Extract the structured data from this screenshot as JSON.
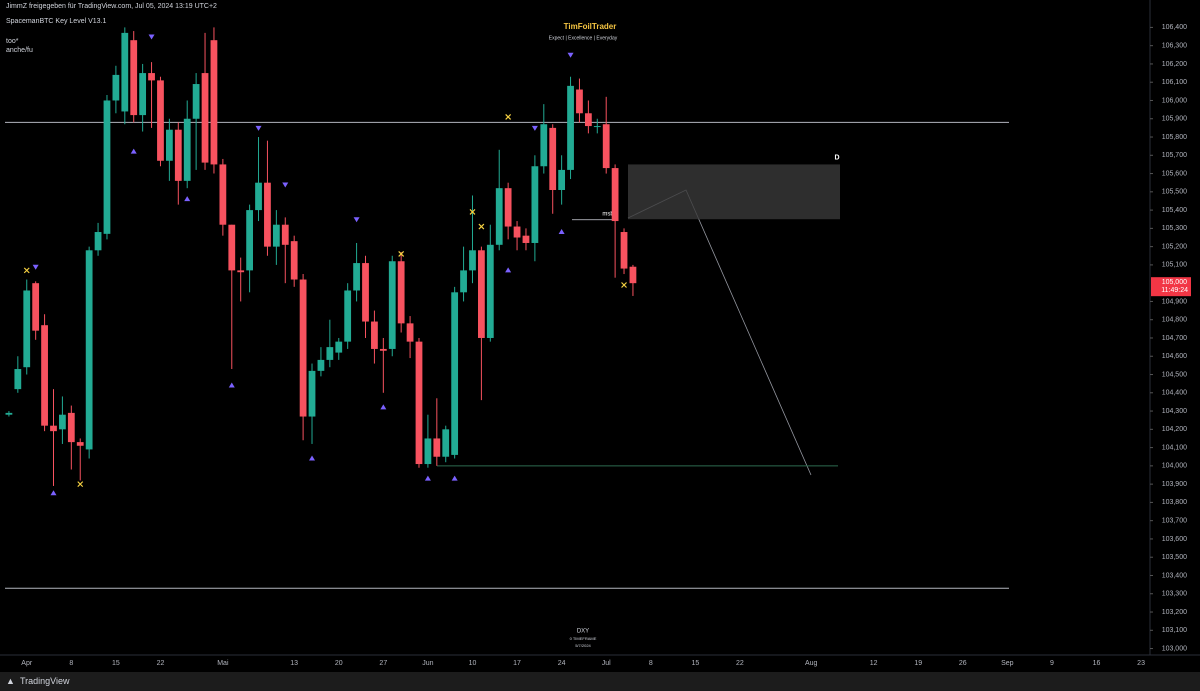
{
  "header": {
    "share": "JimmZ freigegeben für TradingView.com, Jul 05, 2024 13:19 UTC+2",
    "indicator": "SpacemanBTC Key Level V13.1",
    "line2": "too*",
    "line3": "anche/fu"
  },
  "watermark": {
    "title": "TimFoilTrader",
    "subtitle": "Expect | Excellence | Everyday"
  },
  "symbol": {
    "name": "DXY",
    "timeframe": "0 TIMEFRAME",
    "date": "5/7/2024"
  },
  "footer": {
    "brand": "TradingView"
  },
  "chart_data": {
    "type": "candlestick",
    "up_color": "#22ab94",
    "down_color": "#f7525f",
    "open": [
      104280,
      104420,
      104540,
      105000,
      104770,
      104220,
      104200,
      104290,
      104130,
      104090,
      105180,
      105270,
      106000,
      105940,
      106330,
      105920,
      106150,
      106110,
      105670,
      105840,
      105560,
      105900,
      106150,
      106330,
      105650,
      105320,
      105070,
      105070,
      105400,
      105550,
      105200,
      105320,
      105230,
      105020,
      104270,
      104520,
      104580,
      104620,
      104680,
      104960,
      105110,
      104790,
      104640,
      104640,
      105120,
      104780,
      104680,
      104010,
      104150,
      104050,
      104060,
      104950,
      105070,
      105180,
      104700,
      105210,
      105520,
      105310,
      105260,
      105220,
      105640,
      105850,
      105510,
      105620,
      106060,
      105930,
      105860,
      105870,
      105630,
      105280,
      105090
    ],
    "high": [
      104300,
      104600,
      105020,
      105010,
      104830,
      104420,
      104380,
      104330,
      104150,
      105200,
      105330,
      106030,
      106190,
      106400,
      106380,
      106200,
      106210,
      106130,
      105900,
      105880,
      106000,
      106150,
      106370,
      106400,
      105680,
      105320,
      105140,
      105430,
      105800,
      105780,
      105400,
      105360,
      105260,
      105050,
      104560,
      104650,
      104800,
      104700,
      105000,
      105220,
      105150,
      104850,
      104700,
      105150,
      105170,
      104820,
      104700,
      104280,
      104370,
      104220,
      104980,
      105200,
      105480,
      105200,
      105320,
      105730,
      105550,
      105340,
      105300,
      105700,
      105980,
      105870,
      105700,
      106130,
      106120,
      106000,
      105900,
      106020,
      105650,
      105300,
      105100
    ],
    "low": [
      104270,
      104400,
      104500,
      104690,
      104190,
      103890,
      104120,
      103980,
      103920,
      104040,
      105150,
      105240,
      105930,
      105870,
      105880,
      105830,
      105850,
      105640,
      105560,
      105430,
      105520,
      105620,
      105620,
      105600,
      105260,
      104530,
      104900,
      104950,
      105340,
      105150,
      105100,
      105000,
      104980,
      104140,
      104120,
      104490,
      104540,
      104580,
      104640,
      104900,
      104700,
      104560,
      104400,
      104600,
      104730,
      104590,
      103990,
      103990,
      104000,
      104020,
      104040,
      104900,
      105000,
      104360,
      104680,
      105180,
      105240,
      105180,
      105180,
      105120,
      105600,
      105380,
      105430,
      105570,
      105880,
      105820,
      105820,
      105600,
      105030,
      105050,
      104930
    ],
    "close": [
      104290,
      104530,
      104960,
      104740,
      104220,
      104190,
      104280,
      104130,
      104110,
      105180,
      105280,
      106000,
      106140,
      106370,
      105920,
      106150,
      106110,
      105670,
      105840,
      105560,
      105900,
      106090,
      105660,
      105650,
      105320,
      105070,
      105060,
      105400,
      105550,
      105200,
      105320,
      105210,
      105020,
      104270,
      104520,
      104580,
      104650,
      104680,
      104960,
      105110,
      104790,
      104640,
      104630,
      105120,
      104780,
      104680,
      104010,
      104150,
      104050,
      104200,
      104950,
      105070,
      105180,
      104700,
      105210,
      105520,
      105310,
      105250,
      105220,
      105640,
      105870,
      105510,
      105620,
      106080,
      105930,
      105860,
      105860,
      105630,
      105340,
      105080,
      105000
    ],
    "last_price": {
      "value": 105000,
      "label": "105,000"
    },
    "countdown": "11:49:24",
    "levels": [
      105880,
      103330
    ],
    "target_level": 104000,
    "zone": [
      105350,
      105650
    ],
    "zone_label": "D",
    "msb": {
      "label": "msb",
      "price": 105380
    },
    "markers_down": [
      {
        "i": 3,
        "price": 105090
      },
      {
        "i": 16,
        "price": 106350
      },
      {
        "i": 28,
        "price": 105850
      },
      {
        "i": 31,
        "price": 105540
      },
      {
        "i": 39,
        "price": 105350
      },
      {
        "i": 63,
        "price": 106250
      },
      {
        "i": 59,
        "price": 105850
      }
    ],
    "markers_up": [
      {
        "i": 5,
        "price": 103850
      },
      {
        "i": 14,
        "price": 105720
      },
      {
        "i": 20,
        "price": 105460
      },
      {
        "i": 25,
        "price": 104440
      },
      {
        "i": 34,
        "price": 104040
      },
      {
        "i": 42,
        "price": 104320
      },
      {
        "i": 47,
        "price": 103930
      },
      {
        "i": 50,
        "price": 103930
      },
      {
        "i": 56,
        "price": 105070
      },
      {
        "i": 62,
        "price": 105280
      }
    ],
    "markers_x": [
      {
        "i": 2,
        "price": 105070
      },
      {
        "i": 8,
        "price": 103900
      },
      {
        "i": 44,
        "price": 105160
      },
      {
        "i": 52,
        "price": 105390
      },
      {
        "i": 53,
        "price": 105310
      },
      {
        "i": 56,
        "price": 105910
      },
      {
        "i": 69,
        "price": 104990
      }
    ],
    "xlim": [
      -1,
      128
    ],
    "xticks": [
      {
        "value": 2,
        "label": "Apr"
      },
      {
        "value": 7,
        "label": "8"
      },
      {
        "value": 12,
        "label": "15"
      },
      {
        "value": 17,
        "label": "22"
      },
      {
        "value": 24,
        "label": "Mai"
      },
      {
        "value": 32,
        "label": "13"
      },
      {
        "value": 37,
        "label": "20"
      },
      {
        "value": 42,
        "label": "27"
      },
      {
        "value": 47,
        "label": "Jun"
      },
      {
        "value": 52,
        "label": "10"
      },
      {
        "value": 57,
        "label": "17"
      },
      {
        "value": 62,
        "label": "24"
      },
      {
        "value": 67,
        "label": "Jul"
      },
      {
        "value": 72,
        "label": "8"
      },
      {
        "value": 77,
        "label": "15"
      },
      {
        "value": 82,
        "label": "22"
      },
      {
        "value": 90,
        "label": "Aug"
      },
      {
        "value": 97,
        "label": "12"
      },
      {
        "value": 102,
        "label": "19"
      },
      {
        "value": 107,
        "label": "26"
      },
      {
        "value": 112,
        "label": "Sep"
      },
      {
        "value": 117,
        "label": "9"
      },
      {
        "value": 122,
        "label": "16"
      },
      {
        "value": 127,
        "label": "23"
      }
    ],
    "ylim": [
      102910,
      106550
    ],
    "yticks": [
      {
        "value": 103000,
        "label": "103,000"
      },
      {
        "value": 103100,
        "label": "103,100"
      },
      {
        "value": 103200,
        "label": "103,200"
      },
      {
        "value": 103300,
        "label": "103,300"
      },
      {
        "value": 103400,
        "label": "103,400"
      },
      {
        "value": 103500,
        "label": "103,500"
      },
      {
        "value": 103600,
        "label": "103,600"
      },
      {
        "value": 103700,
        "label": "103,700"
      },
      {
        "value": 103800,
        "label": "103,800"
      },
      {
        "value": 103900,
        "label": "103,900"
      },
      {
        "value": 104000,
        "label": "104,000"
      },
      {
        "value": 104100,
        "label": "104,100"
      },
      {
        "value": 104200,
        "label": "104,200"
      },
      {
        "value": 104300,
        "label": "104,300"
      },
      {
        "value": 104400,
        "label": "104,400"
      },
      {
        "value": 104500,
        "label": "104,500"
      },
      {
        "value": 104600,
        "label": "104,600"
      },
      {
        "value": 104700,
        "label": "104,700"
      },
      {
        "value": 104800,
        "label": "104,800"
      },
      {
        "value": 104900,
        "label": "104,900"
      },
      {
        "value": 105100,
        "label": "105,100"
      },
      {
        "value": 105200,
        "label": "105,200"
      },
      {
        "value": 105300,
        "label": "105,300"
      },
      {
        "value": 105400,
        "label": "105,400"
      },
      {
        "value": 105500,
        "label": "105,500"
      },
      {
        "value": 105600,
        "label": "105,600"
      },
      {
        "value": 105700,
        "label": "105,700"
      },
      {
        "value": 105800,
        "label": "105,800"
      },
      {
        "value": 105900,
        "label": "105,900"
      },
      {
        "value": 106000,
        "label": "106,000"
      },
      {
        "value": 106100,
        "label": "106,100"
      },
      {
        "value": 106200,
        "label": "106,200"
      },
      {
        "value": 106300,
        "label": "106,300"
      },
      {
        "value": 106400,
        "label": "106,400"
      }
    ]
  }
}
